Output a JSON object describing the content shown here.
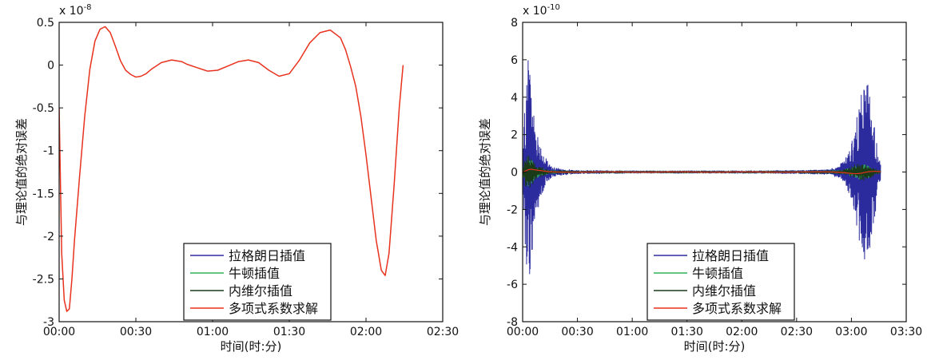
{
  "chart_data": [
    {
      "type": "line",
      "scale_label": "x 10",
      "scale_exp": "-8",
      "xlabel": "时间(时:分)",
      "ylabel": "与理论值的绝对误差",
      "xticks": [
        "00:00",
        "00:30",
        "01:00",
        "01:30",
        "02:00",
        "02:30"
      ],
      "xlim": [
        0,
        150
      ],
      "yticks": [
        "0.5",
        "0",
        "-0.5",
        "-1",
        "-1.5",
        "-2",
        "-2.5",
        "-3"
      ],
      "ytick_values": [
        0.5,
        0,
        -0.5,
        -1,
        -1.5,
        -2,
        -2.5,
        -3
      ],
      "ylim": [
        -3,
        0.5
      ],
      "legend_position": "bottom-center",
      "legend": [
        {
          "name": "拉格朗日插值",
          "color": "#2b2b9e"
        },
        {
          "name": "牛顿插值",
          "color": "#2fb35a"
        },
        {
          "name": "内维尔插值",
          "color": "#1a3a1a"
        },
        {
          "name": "多项式系数求解",
          "color": "#e8321e"
        }
      ],
      "series": [
        {
          "color": "#e8321e",
          "x": [
            0,
            1,
            2,
            3,
            4,
            5,
            6,
            8,
            10,
            12,
            14,
            16,
            18,
            20,
            22,
            24,
            26,
            28,
            30,
            32,
            34,
            36,
            40,
            44,
            48,
            50,
            54,
            58,
            62,
            66,
            70,
            74,
            78,
            82,
            86,
            90,
            94,
            98,
            102,
            106,
            110,
            112,
            114,
            116,
            118,
            120,
            122,
            124,
            126,
            127.5,
            129,
            131,
            133,
            134.5
          ],
          "y": [
            -0.5,
            -2.2,
            -2.75,
            -2.88,
            -2.85,
            -2.5,
            -2.05,
            -1.3,
            -0.6,
            -0.05,
            0.28,
            0.42,
            0.45,
            0.38,
            0.22,
            0.05,
            -0.06,
            -0.11,
            -0.14,
            -0.13,
            -0.1,
            -0.05,
            0.03,
            0.06,
            0.04,
            0.01,
            -0.03,
            -0.07,
            -0.06,
            -0.01,
            0.04,
            0.06,
            0.03,
            -0.06,
            -0.13,
            -0.1,
            0.06,
            0.26,
            0.38,
            0.41,
            0.32,
            0.18,
            -0.02,
            -0.25,
            -0.6,
            -1.05,
            -1.55,
            -2.05,
            -2.4,
            -2.46,
            -2.2,
            -1.4,
            -0.5,
            0.0
          ]
        }
      ]
    },
    {
      "type": "line",
      "scale_label": "x 10",
      "scale_exp": "-10",
      "xlabel": "时间(时:分)",
      "ylabel": "与理论值的绝对误差",
      "xticks": [
        "00:00",
        "00:30",
        "01:00",
        "01:30",
        "02:00",
        "02:30",
        "03:00",
        "03:30"
      ],
      "xlim": [
        0,
        210
      ],
      "yticks": [
        "8",
        "6",
        "4",
        "2",
        "0",
        "-2",
        "-4",
        "-6",
        "-8"
      ],
      "ytick_values": [
        8,
        6,
        4,
        2,
        0,
        -2,
        -4,
        -6,
        -8
      ],
      "ylim": [
        -8,
        8
      ],
      "legend_position": "bottom-center",
      "legend": [
        {
          "name": "拉格朗日插值",
          "color": "#2b2b9e"
        },
        {
          "name": "牛顿插值",
          "color": "#2fb35a"
        },
        {
          "name": "内维尔插值",
          "color": "#1a3a1a"
        },
        {
          "name": "多项式系数求解",
          "color": "#e8321e"
        }
      ],
      "noise_envelope": {
        "x": [
          0,
          1,
          2,
          3,
          4,
          5,
          6,
          8,
          10,
          12,
          14,
          16,
          20,
          30,
          60,
          90,
          120,
          150,
          168,
          172,
          176,
          180,
          182,
          184,
          186,
          188,
          190,
          192,
          194,
          196
        ],
        "blue": [
          0.3,
          3.0,
          5.0,
          6.5,
          6.0,
          5.0,
          3.5,
          2.2,
          1.5,
          0.9,
          0.5,
          0.3,
          0.2,
          0.1,
          0.08,
          0.08,
          0.08,
          0.1,
          0.15,
          0.3,
          0.6,
          1.5,
          2.5,
          3.5,
          4.5,
          5.5,
          4.5,
          3.0,
          1.5,
          0.5
        ],
        "black": [
          0.1,
          0.6,
          0.9,
          1.0,
          0.9,
          0.8,
          0.6,
          0.4,
          0.3,
          0.2,
          0.12,
          0.08,
          0.05,
          0.03,
          0.03,
          0.03,
          0.03,
          0.03,
          0.05,
          0.1,
          0.15,
          0.3,
          0.4,
          0.45,
          0.5,
          0.45,
          0.35,
          0.25,
          0.15,
          0.08
        ]
      },
      "series_end_x": 196
    }
  ]
}
